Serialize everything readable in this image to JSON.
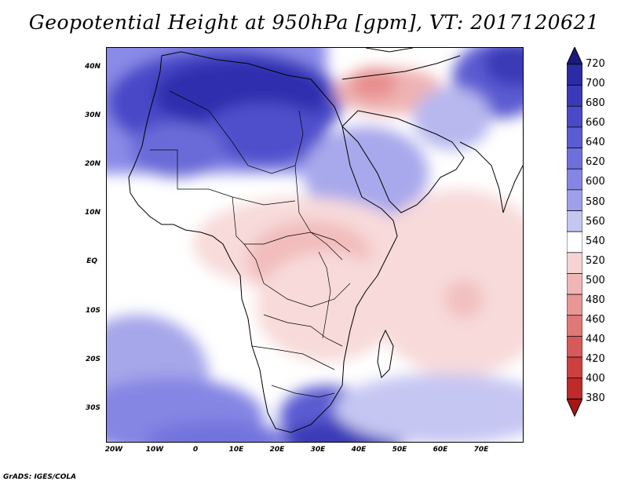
{
  "title": "Geopotential Height at 950hPa [gpm], VT: 2017120621",
  "credit": "GrADS: IGES/COLA",
  "map": {
    "region": "Africa and Arabian Peninsula",
    "lat_labels": [
      "40N",
      "30N",
      "20N",
      "10N",
      "EQ",
      "10S",
      "20S",
      "30S"
    ],
    "lon_labels": [
      "20W",
      "10W",
      "0",
      "10E",
      "20E",
      "30E",
      "40E",
      "50E",
      "60E",
      "70E"
    ]
  },
  "colorbar": {
    "levels": [
      "720",
      "700",
      "680",
      "660",
      "640",
      "620",
      "600",
      "580",
      "560",
      "540",
      "520",
      "500",
      "480",
      "460",
      "440",
      "420",
      "400",
      "380"
    ],
    "colors": [
      "#1a1a7a",
      "#2b2ba8",
      "#3a3ab8",
      "#4a4ac8",
      "#5b5bd2",
      "#6f6fdc",
      "#8585e4",
      "#a0a0ea",
      "#c6c6f3",
      "#ffffff",
      "#f7d3d3",
      "#f0b5b5",
      "#e89696",
      "#e07878",
      "#d65a5a",
      "#cc4040",
      "#bf2a2a",
      "#a51515"
    ]
  }
}
